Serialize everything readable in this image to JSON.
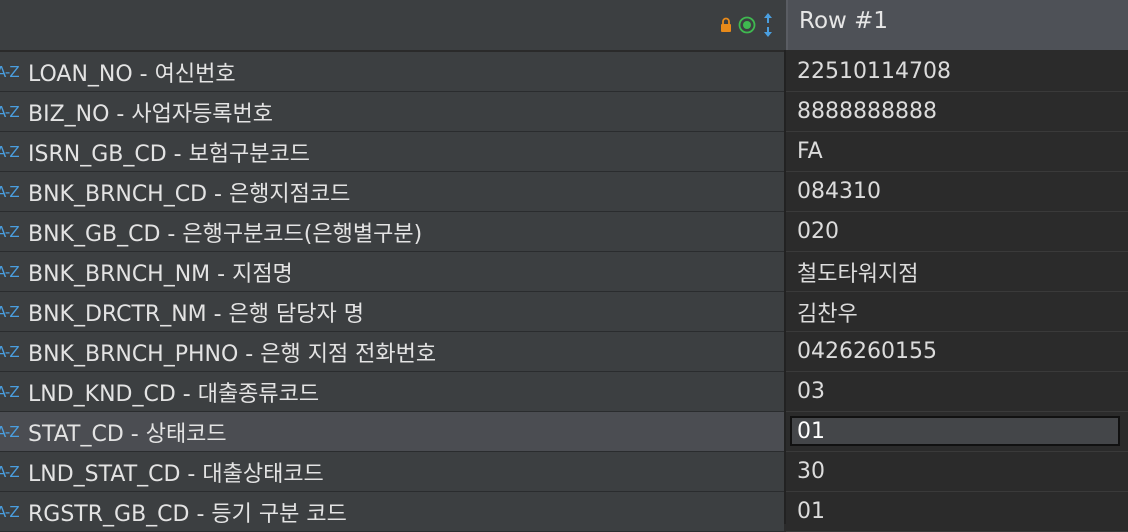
{
  "header": {
    "row_label": "Row  #1",
    "icons": [
      "lock-icon",
      "status-dot-icon",
      "sort-arrows-icon"
    ],
    "colors": {
      "lock": "#e88a1a",
      "status_dot": "#3fb950",
      "sort_arrows": "#4a9fe0"
    }
  },
  "type_icon_text": "A-Z",
  "rows": [
    {
      "label": "LOAN_NO - 여신번호",
      "value": "22510114708"
    },
    {
      "label": "BIZ_NO - 사업자등록번호",
      "value": "8888888888"
    },
    {
      "label": "ISRN_GB_CD - 보험구분코드",
      "value": "FA"
    },
    {
      "label": "BNK_BRNCH_CD - 은행지점코드",
      "value": "084310"
    },
    {
      "label": "BNK_GB_CD - 은행구분코드(은행별구분)",
      "value": "020"
    },
    {
      "label": "BNK_BRNCH_NM - 지점명",
      "value": "철도타워지점"
    },
    {
      "label": "BNK_DRCTR_NM - 은행 담당자 명",
      "value": "김찬우"
    },
    {
      "label": "BNK_BRNCH_PHNO - 은행 지점 전화번호",
      "value": "0426260155"
    },
    {
      "label": "LND_KND_CD - 대출종류코드",
      "value": "03"
    },
    {
      "label": "STAT_CD - 상태코드",
      "value": "01"
    },
    {
      "label": "LND_STAT_CD - 대출상태코드",
      "value": "30"
    },
    {
      "label": "RGSTR_GB_CD - 등기 구분 코드",
      "value": "01"
    }
  ]
}
